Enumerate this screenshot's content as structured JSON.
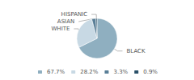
{
  "chart_data": {
    "type": "pie",
    "categories": [
      "BLACK",
      "WHITE",
      "ASIAN",
      "HISPANIC"
    ],
    "values": [
      67.7,
      28.2,
      3.3,
      0.9
    ],
    "value_labels": [
      "67.7%",
      "28.2%",
      "3.3%",
      "0.9%"
    ],
    "colors": [
      "#8fafc0",
      "#c8d9e4",
      "#5a7f97",
      "#2a5068"
    ],
    "legend": "bottom"
  }
}
